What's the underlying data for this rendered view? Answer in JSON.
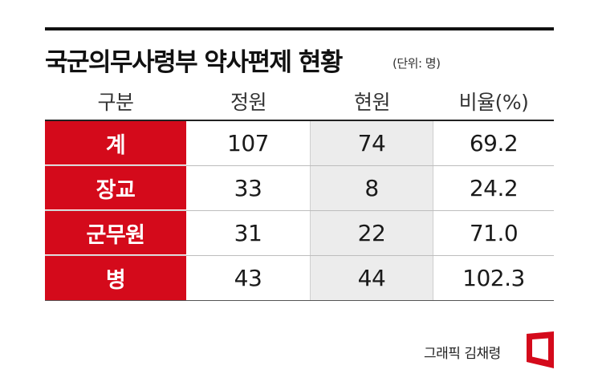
{
  "title": "국군의무사령부 약사편제 현황",
  "unit": "(단위: 명)",
  "credit": "그래픽 김채령",
  "colors": {
    "accent": "#d40a1b",
    "shade": "#ececec"
  },
  "chart_data": {
    "type": "table",
    "columns": [
      "구분",
      "정원",
      "현원",
      "비율(%)"
    ],
    "rows": [
      {
        "label": "계",
        "values": [
          "107",
          "74",
          "69.2"
        ]
      },
      {
        "label": "장교",
        "values": [
          "33",
          "8",
          "24.2"
        ]
      },
      {
        "label": "군무원",
        "values": [
          "31",
          "22",
          "71.0"
        ]
      },
      {
        "label": "병",
        "values": [
          "43",
          "44",
          "102.3"
        ]
      }
    ]
  }
}
